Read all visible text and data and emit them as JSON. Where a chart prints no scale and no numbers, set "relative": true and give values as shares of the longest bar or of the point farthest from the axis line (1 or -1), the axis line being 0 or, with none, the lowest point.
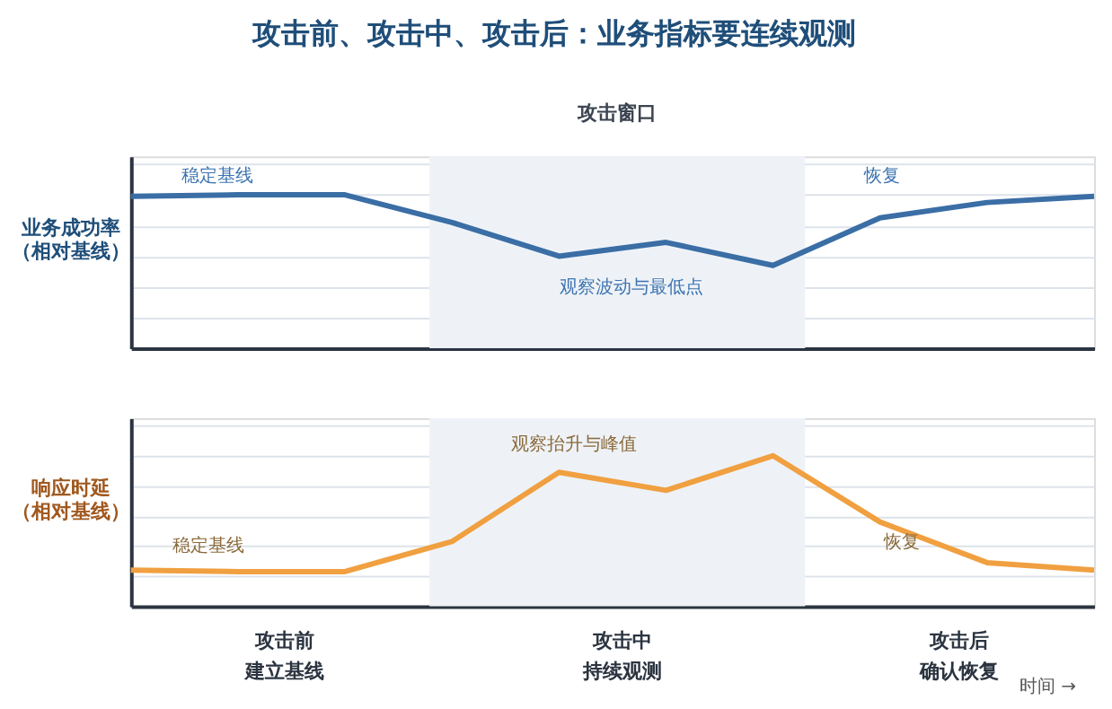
{
  "chart_data": [
    {
      "type": "line",
      "title": "攻击前、攻击中、攻击后：业务指标要连续观测",
      "ylabel": "业务成功率（相对基线）",
      "relative": true,
      "grid": "y",
      "legend": false,
      "marker": "none",
      "line_style": "solid",
      "categories": [
        null,
        null,
        null,
        null,
        null,
        null,
        null,
        null,
        null,
        null
      ],
      "series": [
        {
          "color": "#3a6ea5",
          "values": [
            0.99,
            1,
            1,
            0.82,
            0.6,
            0.69,
            0.54,
            0.85,
            0.95,
            0.99
          ]
        }
      ],
      "annotations": [
        "攻击窗口",
        "稳定基线",
        "恢复",
        "观察波动与最低点"
      ]
    },
    {
      "type": "line",
      "ylabel": "响应时延（相对基线）",
      "relative": true,
      "grid": "y",
      "legend": false,
      "marker": "none",
      "line_style": "solid",
      "categories": [
        null,
        null,
        null,
        null,
        null,
        null,
        null,
        null,
        null,
        null
      ],
      "series": [
        {
          "color": "#f0a040",
          "values": [
            0.24,
            0.23,
            0.23,
            0.43,
            0.89,
            0.77,
            1,
            0.56,
            0.29,
            0.24
          ]
        }
      ],
      "annotations": [
        "观察抬升与峰值",
        "稳定基线",
        "恢复",
        "攻击前",
        "建立基线",
        "攻击中",
        "持续观测",
        "攻击后",
        "确认恢复",
        "时间 →"
      ]
    }
  ]
}
